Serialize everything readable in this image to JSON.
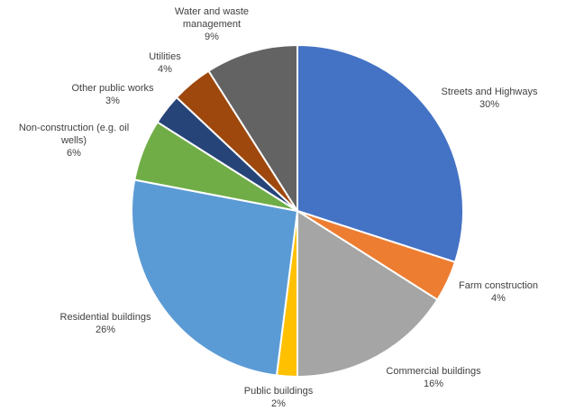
{
  "chart_data": {
    "type": "pie",
    "start_angle_deg": 0,
    "direction": "clockwise",
    "slices": [
      {
        "name": "Streets and Highways",
        "value": 30,
        "label_lines": [
          "Streets and Highways"
        ],
        "pct_label": "30%",
        "color": "#4472C4"
      },
      {
        "name": "Farm construction",
        "value": 4,
        "label_lines": [
          "Farm construction"
        ],
        "pct_label": "4%",
        "color": "#ED7D31"
      },
      {
        "name": "Commercial buildings",
        "value": 16,
        "label_lines": [
          "Commercial buildings"
        ],
        "pct_label": "16%",
        "color": "#A5A5A5"
      },
      {
        "name": "Public buildings",
        "value": 2,
        "label_lines": [
          "Public buildings"
        ],
        "pct_label": "2%",
        "color": "#FFC000"
      },
      {
        "name": "Residential buildings",
        "value": 26,
        "label_lines": [
          "Residential buildings"
        ],
        "pct_label": "26%",
        "color": "#5B9BD5"
      },
      {
        "name": "Non-construction (e.g. oil wells)",
        "value": 6,
        "label_lines": [
          "Non-construction (e.g. oil",
          "wells)"
        ],
        "pct_label": "6%",
        "color": "#70AD47"
      },
      {
        "name": "Other public works",
        "value": 3,
        "label_lines": [
          "Other public works"
        ],
        "pct_label": "3%",
        "color": "#264478"
      },
      {
        "name": "Utilities",
        "value": 4,
        "label_lines": [
          "Utilities"
        ],
        "pct_label": "4%",
        "color": "#9E480E"
      },
      {
        "name": "Water and waste management",
        "value": 9,
        "label_lines": [
          "Water and waste",
          "management"
        ],
        "pct_label": "9%",
        "color": "#636363"
      }
    ]
  }
}
